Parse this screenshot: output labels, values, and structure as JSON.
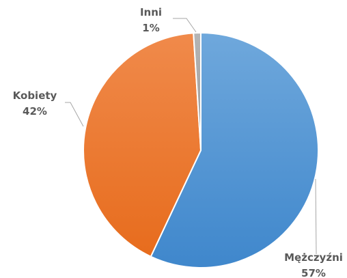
{
  "chart_data": {
    "type": "pie",
    "slices": [
      {
        "name": "Mężczyźni",
        "value": 57,
        "label": "57%",
        "color": "#5b9bd5"
      },
      {
        "name": "Kobiety",
        "value": 42,
        "label": "42%",
        "color": "#ed7d31"
      },
      {
        "name": "Inni",
        "value": 1,
        "label": "1%",
        "color": "#a5a5a5"
      }
    ],
    "legend": "none",
    "start_angle": "12 o'clock, clockwise"
  }
}
